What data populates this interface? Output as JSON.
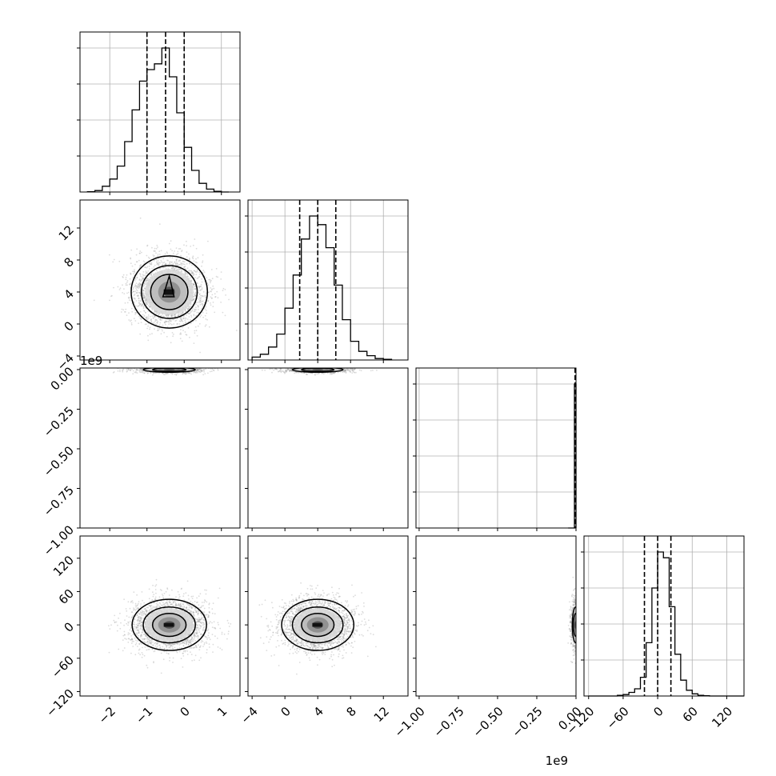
{
  "chart_data": {
    "type": "corner",
    "n_params": 4,
    "quantile_lines": "dashed",
    "grid": true,
    "panels": {
      "hist": [
        {
          "index": 0,
          "bins": [
            -2.6,
            -2.4,
            -2.2,
            -2.0,
            -1.8,
            -1.6,
            -1.4,
            -1.2,
            -1.0,
            -0.8,
            -0.6,
            -0.4,
            -0.2,
            0.0,
            0.2,
            0.4,
            0.6,
            0.8,
            1.0,
            1.2
          ],
          "heights": [
            0.002,
            0.01,
            0.04,
            0.09,
            0.18,
            0.35,
            0.57,
            0.77,
            0.85,
            0.89,
            1.0,
            0.8,
            0.55,
            0.31,
            0.15,
            0.06,
            0.02,
            0.005,
            0.0
          ],
          "quantiles": [
            -1.0,
            -0.5,
            0.0
          ]
        },
        {
          "index": 1,
          "bins": [
            -4,
            -3,
            -2,
            -1,
            0,
            1,
            2,
            3,
            4,
            5,
            6,
            7,
            8,
            9,
            10,
            11,
            12,
            13
          ],
          "heights": [
            0.02,
            0.04,
            0.09,
            0.18,
            0.36,
            0.59,
            0.84,
            1.0,
            0.94,
            0.78,
            0.52,
            0.28,
            0.13,
            0.06,
            0.03,
            0.01,
            0.005
          ],
          "quantiles": [
            1.8,
            4.0,
            6.2
          ]
        },
        {
          "index": 2,
          "bins": [
            -0.05,
            -0.01,
            0.0
          ],
          "heights": [
            0.0,
            1.0
          ],
          "quantiles": [
            -0.003,
            0.0,
            0.0
          ]
        },
        {
          "index": 3,
          "bins": [
            -120,
            -110,
            -100,
            -90,
            -80,
            -70,
            -60,
            -50,
            -40,
            -30,
            -20,
            -10,
            0,
            10,
            20,
            30,
            40,
            50,
            60,
            70,
            80,
            90,
            100,
            110,
            120,
            130,
            140,
            150
          ],
          "heights": [
            0,
            0,
            0,
            0,
            0,
            0.005,
            0.01,
            0.025,
            0.05,
            0.13,
            0.37,
            0.75,
            1.0,
            0.96,
            0.62,
            0.29,
            0.11,
            0.04,
            0.015,
            0.005,
            0.002,
            0,
            0,
            0,
            0,
            0,
            0
          ],
          "quantiles": [
            -23,
            0,
            23
          ]
        }
      ],
      "scatter": [
        {
          "row": 1,
          "col": 0,
          "center_x": -0.4,
          "center_y": 4.0,
          "sigma_x": 0.5,
          "sigma_y": 2.2,
          "level_radii": [
            1.0,
            1.5,
            2.05
          ]
        },
        {
          "row": 2,
          "col": 0,
          "center_x": -0.4,
          "center_y": -0.001,
          "sigma_x": 0.5,
          "sigma_y": 0.003,
          "level_radii": [
            0.9,
            1.4
          ],
          "squashed": true
        },
        {
          "row": 2,
          "col": 1,
          "center_x": 4.0,
          "center_y": -0.001,
          "sigma_x": 2.2,
          "sigma_y": 0.003,
          "level_radii": [
            0.9,
            1.4
          ],
          "squashed": true
        },
        {
          "row": 3,
          "col": 0,
          "center_x": -0.4,
          "center_y": 0.0,
          "sigma_x": 0.5,
          "sigma_y": 23,
          "level_radii": [
            0.9,
            1.4,
            2.0
          ]
        },
        {
          "row": 3,
          "col": 1,
          "center_x": 4.0,
          "center_y": 0.0,
          "sigma_x": 2.2,
          "sigma_y": 23,
          "level_radii": [
            0.9,
            1.4,
            2.0
          ]
        },
        {
          "row": 3,
          "col": 2,
          "center_x": -0.002,
          "center_y": 0.0,
          "sigma_x": 0.002,
          "sigma_y": 23,
          "level_radii": [
            0.9,
            1.4
          ],
          "squashed": true
        }
      ]
    },
    "axes": {
      "x": [
        {
          "range": [
            -2.8,
            1.5
          ],
          "ticks": [
            -2,
            -1,
            0,
            1
          ],
          "tick_labels": [
            "−2",
            "−1",
            "0",
            "1"
          ],
          "offset_label": ""
        },
        {
          "range": [
            -4.5,
            15
          ],
          "ticks": [
            -4,
            0,
            4,
            8,
            12
          ],
          "tick_labels": [
            "−4",
            "0",
            "4",
            "8",
            "12"
          ],
          "offset_label": ""
        },
        {
          "range": [
            -1.02,
            0.0
          ],
          "ticks": [
            -1.0,
            -0.75,
            -0.5,
            -0.25,
            0.0
          ],
          "tick_labels": [
            "−1.00",
            "−0.75",
            "−0.50",
            "−0.25",
            "0.00"
          ],
          "offset_label": "1e9"
        },
        {
          "range": [
            -128,
            150
          ],
          "ticks": [
            -120,
            -60,
            0,
            60,
            120
          ],
          "tick_labels": [
            "−120",
            "−60",
            "0",
            "60",
            "120"
          ],
          "offset_label": ""
        }
      ],
      "y": [
        null,
        {
          "range": [
            -4.5,
            15.5
          ],
          "ticks": [
            -4,
            0,
            4,
            8,
            12
          ],
          "tick_labels": [
            "−4",
            "0",
            "4",
            "8",
            "12"
          ],
          "offset_label": ""
        },
        {
          "range": [
            -1.0,
            0.01
          ],
          "ticks": [
            -1.0,
            -0.75,
            -0.5,
            -0.25,
            0.0
          ],
          "tick_labels": [
            "−1.00",
            "−0.75",
            "−0.50",
            "−0.25",
            "0.00"
          ],
          "offset_label": "1e9"
        },
        {
          "range": [
            -128,
            160
          ],
          "ticks": [
            -120,
            -60,
            0,
            60,
            120
          ],
          "tick_labels": [
            "−120",
            "−60",
            "0",
            "60",
            "120"
          ],
          "offset_label": ""
        }
      ]
    },
    "xlabel": "",
    "ylabel": ""
  }
}
